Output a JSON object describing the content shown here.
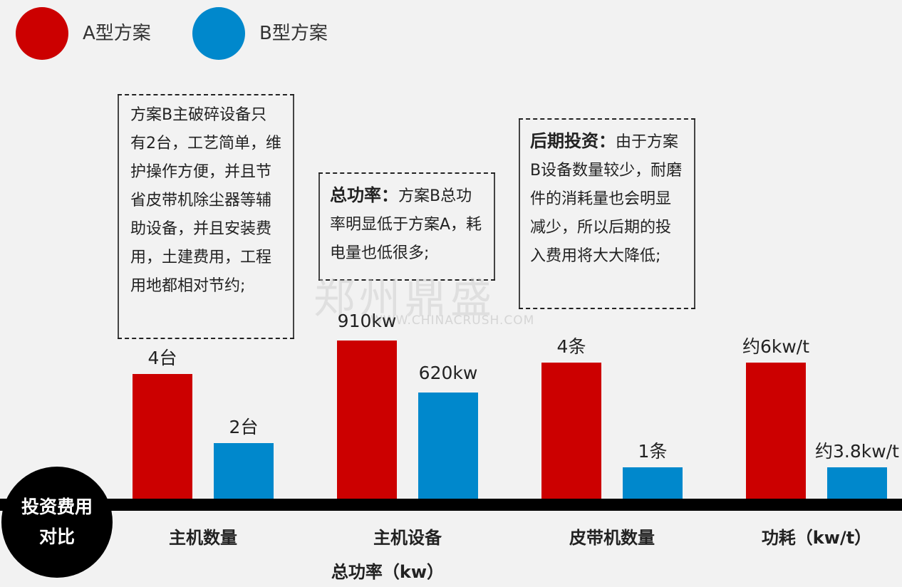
{
  "legend": [
    {
      "label": "A型方案",
      "color": "#cc0000"
    },
    {
      "label": "B型方案",
      "color": "#0088cc"
    }
  ],
  "notes": [
    {
      "heading": "",
      "text": "方案B主破碎设备只有2台，工艺简单，维护操作方便，并且节省皮带机除尘器等辅助设备，并且安装费用，土建费用，工程用地都相对节约;"
    },
    {
      "heading": "总功率：",
      "text": "方案B总功率明显低于方案A，耗电量也低很多;"
    },
    {
      "heading": "后期投资：",
      "text": "由于方案B设备数量较少，耐磨件的消耗量也会明显减少，所以后期的投入费用将大大降低;"
    }
  ],
  "watermark": {
    "logo": "郑州鼎盛",
    "url": "WWW.CHINACRUSH.COM"
  },
  "axis_badge": [
    "投资费用",
    "对比"
  ],
  "chart_data": {
    "type": "bar",
    "categories": [
      "主机数量",
      "主机设备\n总功率（kw）",
      "皮带机数量",
      "功耗（kw/t）"
    ],
    "series": [
      {
        "name": "A型方案",
        "color": "#cc0000",
        "labels": [
          "4台",
          "910kw",
          "4条",
          "约6kw/t"
        ],
        "heights": [
          0.79,
          1.0,
          0.86,
          0.86
        ]
      },
      {
        "name": "B型方案",
        "color": "#0088cc",
        "labels": [
          "2台",
          "620kw",
          "1条",
          "约3.8kw/t"
        ],
        "heights": [
          0.35,
          0.67,
          0.2,
          0.2
        ]
      }
    ]
  }
}
